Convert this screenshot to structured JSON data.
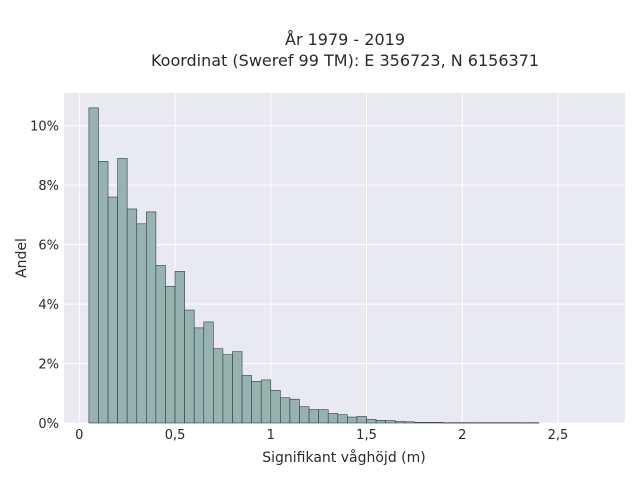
{
  "chart_data": {
    "type": "bar",
    "title": "År 1979 - 2019",
    "subtitle": "Koordinat (Sweref 99 TM): E 356723, N 6156371",
    "xlabel": "Signifikant våghöjd (m)",
    "ylabel": "Andel",
    "xlim": [
      -0.08,
      2.85
    ],
    "ylim": [
      0,
      0.111
    ],
    "x_ticks": [
      0,
      0.5,
      1,
      1.5,
      2,
      2.5
    ],
    "x_tick_labels": [
      "0",
      "0,5",
      "1",
      "1,5",
      "2",
      "2,5"
    ],
    "y_ticks": [
      0,
      0.02,
      0.04,
      0.06,
      0.08,
      0.1
    ],
    "y_tick_labels": [
      "0%",
      "2%",
      "4%",
      "6%",
      "8%",
      "10%"
    ],
    "grid": true,
    "bin_width": 0.05,
    "bins_start": [
      0.05,
      0.1,
      0.15,
      0.2,
      0.25,
      0.3,
      0.35,
      0.4,
      0.45,
      0.5,
      0.55,
      0.6,
      0.65,
      0.7,
      0.75,
      0.8,
      0.85,
      0.9,
      0.95,
      1.0,
      1.05,
      1.1,
      1.15,
      1.2,
      1.25,
      1.3,
      1.35,
      1.4,
      1.45,
      1.5,
      1.55,
      1.6,
      1.65,
      1.7,
      1.75,
      1.8,
      1.85,
      1.9,
      1.95,
      2.0,
      2.05,
      2.1,
      2.15,
      2.2,
      2.25,
      2.3,
      2.35
    ],
    "values": [
      0.106,
      0.088,
      0.076,
      0.089,
      0.072,
      0.067,
      0.071,
      0.053,
      0.046,
      0.051,
      0.038,
      0.032,
      0.034,
      0.025,
      0.023,
      0.024,
      0.016,
      0.014,
      0.0145,
      0.011,
      0.0085,
      0.008,
      0.0055,
      0.0045,
      0.0045,
      0.0032,
      0.0028,
      0.002,
      0.0022,
      0.0012,
      0.0009,
      0.0008,
      0.0005,
      0.0004,
      0.0002,
      0.0002,
      0.0002,
      0.0001,
      0.0001,
      0.0001,
      0.0001,
      0.0001,
      0.0001,
      0.0001,
      0.0001,
      0.0001,
      0.0001
    ],
    "colors": {
      "bar_fill": "#97b3b0",
      "bar_edge": "#2f3f3d",
      "plot_bg": "#e9e9f1",
      "grid": "#ffffff"
    }
  }
}
